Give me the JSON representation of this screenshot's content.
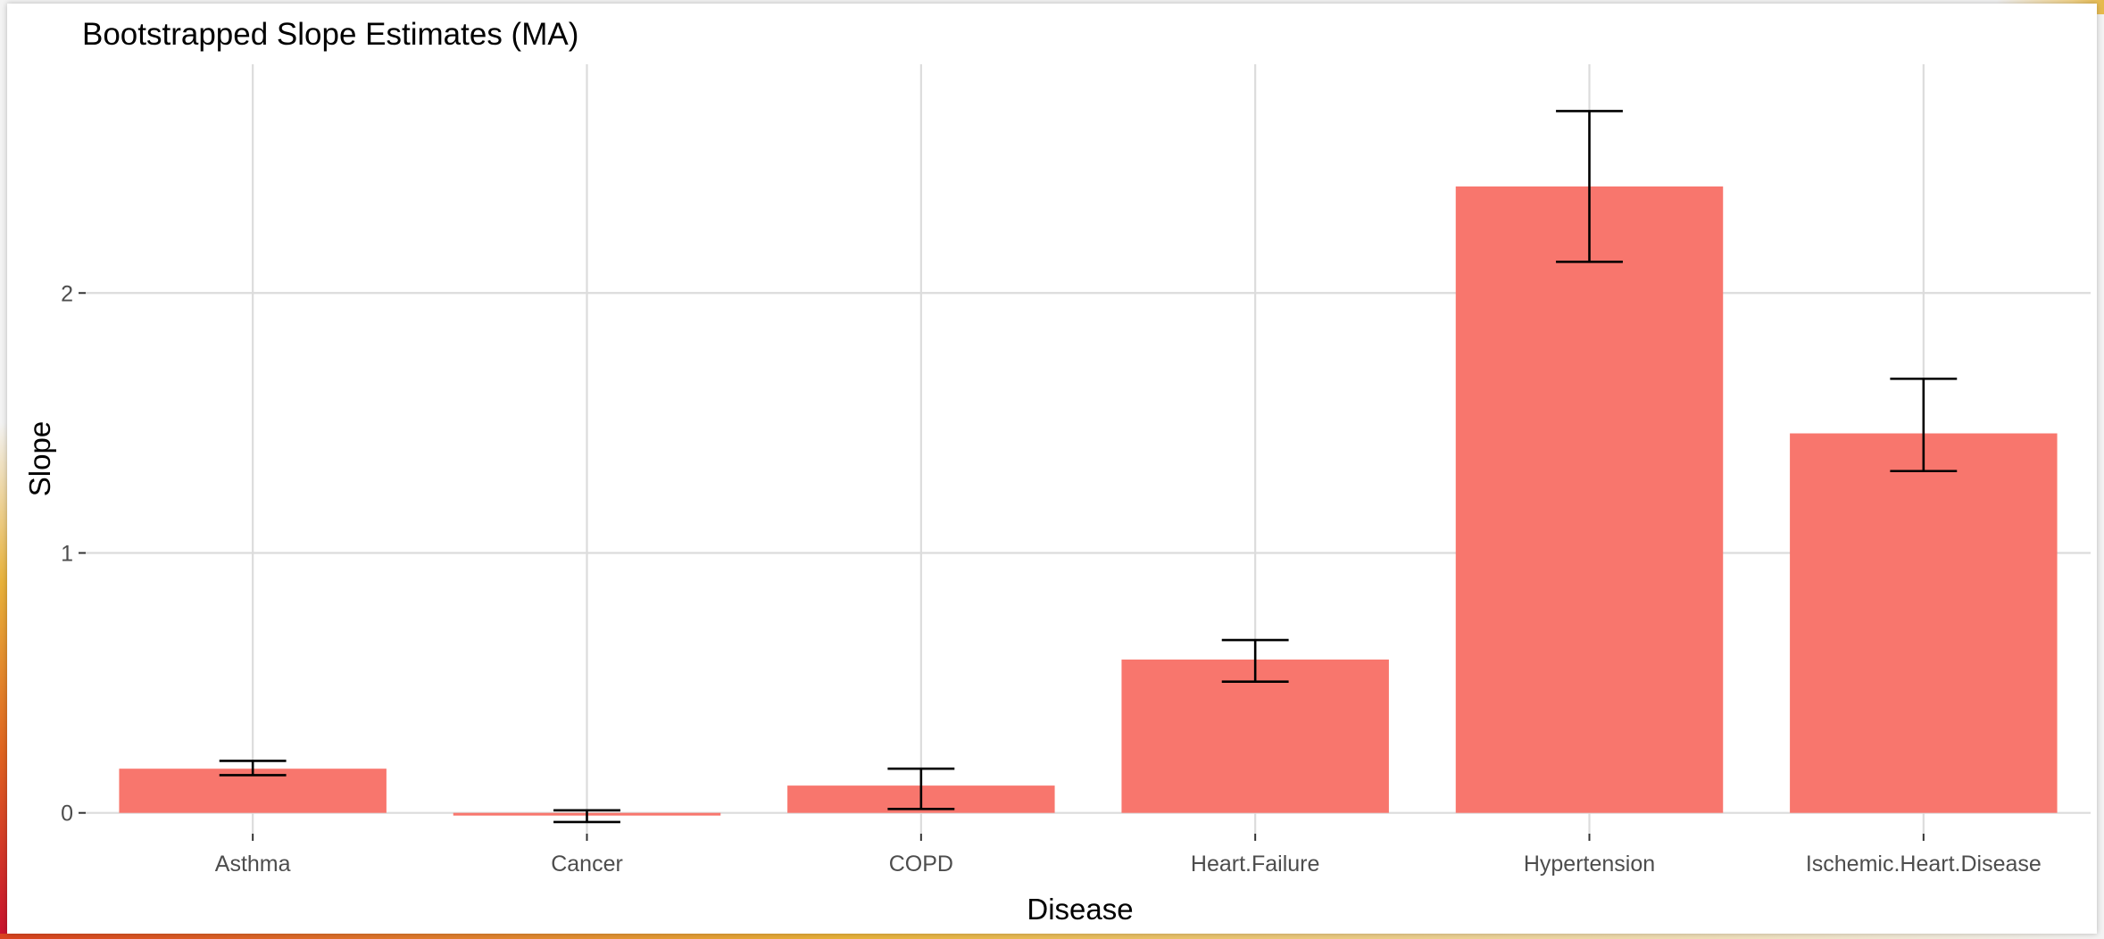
{
  "chart_data": {
    "type": "bar",
    "title": "Bootstrapped Slope Estimates (MA)",
    "xlabel": "Disease",
    "ylabel": "Slope",
    "categories": [
      "Asthma",
      "Cancer",
      "COPD",
      "Heart.Failure",
      "Hypertension",
      "Ischemic.Heart.Disease"
    ],
    "values": [
      0.17,
      -0.01,
      0.105,
      0.59,
      2.41,
      1.46
    ],
    "error_lower": [
      0.145,
      -0.035,
      0.015,
      0.505,
      2.12,
      1.315
    ],
    "error_upper": [
      0.2,
      0.01,
      0.17,
      0.665,
      2.7,
      1.67
    ],
    "y_ticks": [
      0,
      1,
      2
    ],
    "y_tick_labels": [
      "0",
      "1",
      "2"
    ],
    "ylim": [
      -0.08,
      2.88
    ],
    "grid": true,
    "legend": "none",
    "colors": {
      "bar": "#f8766d",
      "error_bar": "#000000",
      "grid": "#dcdcdc"
    }
  }
}
